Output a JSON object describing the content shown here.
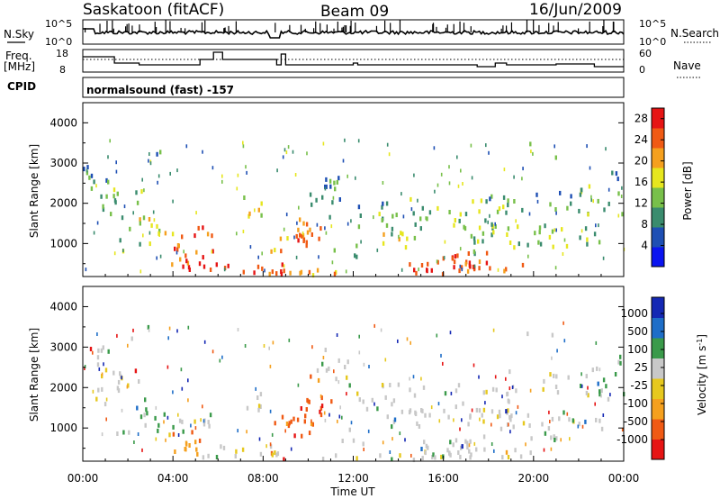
{
  "header": {
    "station": "Saskatoon (fitACF)",
    "beam": "Beam 09",
    "date": "16/Jun/2009"
  },
  "colors": {
    "power_scale": [
      "#0a14f0",
      "#1e4fb4",
      "#3a8c6e",
      "#78c04a",
      "#e6e61e",
      "#f5a01e",
      "#f05a14",
      "#e61414"
    ],
    "velocity_scale": [
      "#e61414",
      "#f05a14",
      "#f5a01e",
      "#e6c81e",
      "#c8c8c8",
      "#3a9a4a",
      "#1e6ec8",
      "#1428b4"
    ]
  },
  "nsky_panel": {
    "label": "N.Sky",
    "right_label": "N.Search",
    "left_ticks": [
      "10^5",
      "10^0"
    ],
    "right_ticks": [
      "10^5",
      "10^0"
    ]
  },
  "freq_panel": {
    "label_line1": "Freq.",
    "label_line2": "[MHz]",
    "right_label": "Nave",
    "left_ticks": [
      "18",
      "8"
    ],
    "right_ticks": [
      "60",
      "0"
    ]
  },
  "cpid_panel": {
    "label": "CPID",
    "text": "normalsound (fast) -157"
  },
  "chart_data": [
    {
      "id": "power",
      "type": "heatmap",
      "title": "",
      "xlabel": "",
      "ylabel": "Slant Range [km]",
      "x_ticks": [
        "00:00",
        "04:00",
        "08:00",
        "12:00",
        "16:00",
        "20:00",
        "00:00"
      ],
      "xlim_hours": [
        0,
        24
      ],
      "y_ticks": [
        1000,
        2000,
        3000,
        4000
      ],
      "ylim_km": [
        180,
        4500
      ],
      "colorbar": {
        "label": "Power [dB]",
        "ticks": [
          4,
          8,
          12,
          16,
          20,
          24,
          28
        ],
        "range": [
          0,
          30
        ]
      }
    },
    {
      "id": "velocity",
      "type": "heatmap",
      "title": "",
      "xlabel": "Time UT",
      "ylabel": "Slant Range [km]",
      "x_ticks": [
        "00:00",
        "04:00",
        "08:00",
        "12:00",
        "16:00",
        "20:00",
        "00:00"
      ],
      "xlim_hours": [
        0,
        24
      ],
      "y_ticks": [
        1000,
        2000,
        3000,
        4000
      ],
      "ylim_km": [
        180,
        4500
      ],
      "colorbar": {
        "label": "Velocity [m s^-1]",
        "ticks": [
          "1000",
          "500",
          "100",
          "25",
          "-25",
          "-100",
          "-500",
          "-1000"
        ]
      }
    }
  ]
}
